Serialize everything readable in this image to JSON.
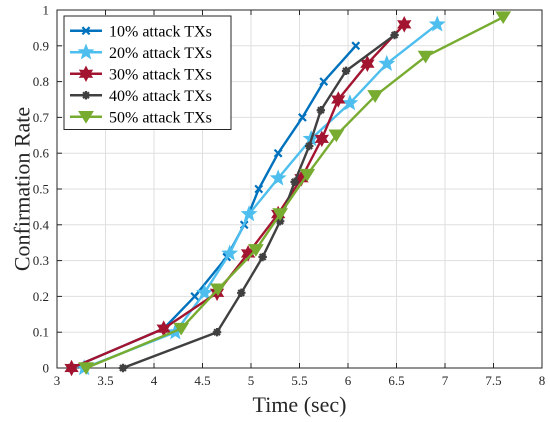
{
  "chart_data": {
    "type": "line",
    "xlabel": "Time (sec)",
    "ylabel": "Confirmation Rate",
    "xlim": [
      3,
      8
    ],
    "ylim": [
      0,
      1
    ],
    "xticks": [
      "3",
      "3.5",
      "4",
      "4.5",
      "5",
      "5.5",
      "6",
      "6.5",
      "7",
      "7.5",
      "8"
    ],
    "yticks": [
      "0",
      "0.1",
      "0.2",
      "0.3",
      "0.4",
      "0.5",
      "0.6",
      "0.7",
      "0.8",
      "0.9",
      "1"
    ],
    "grid": true,
    "legend_position": "top-left",
    "series": [
      {
        "name": "10% attack TXs",
        "color": "#0072bd",
        "marker": "x",
        "x": [
          3.15,
          4.1,
          4.42,
          4.75,
          4.93,
          5.08,
          5.28,
          5.53,
          5.75,
          6.08
        ],
        "y": [
          0.0,
          0.11,
          0.2,
          0.31,
          0.4,
          0.5,
          0.6,
          0.7,
          0.8,
          0.9
        ]
      },
      {
        "name": "20% attack TXs",
        "color": "#4dbeee",
        "marker": "star",
        "x": [
          3.28,
          4.22,
          4.52,
          4.78,
          4.98,
          5.28,
          5.62,
          6.02,
          6.4,
          6.92
        ],
        "y": [
          0.0,
          0.1,
          0.21,
          0.32,
          0.43,
          0.53,
          0.64,
          0.74,
          0.85,
          0.96
        ]
      },
      {
        "name": "30% attack TXs",
        "color": "#a2142f",
        "marker": "hexagram",
        "x": [
          3.15,
          4.1,
          4.65,
          4.97,
          5.28,
          5.52,
          5.73,
          5.9,
          6.2,
          6.58
        ],
        "y": [
          0.0,
          0.11,
          0.21,
          0.32,
          0.43,
          0.53,
          0.64,
          0.75,
          0.85,
          0.96
        ]
      },
      {
        "name": "40% attack TXs",
        "color": "#404040",
        "marker": "asterisk",
        "x": [
          3.68,
          4.65,
          4.9,
          5.12,
          5.3,
          5.45,
          5.6,
          5.72,
          5.98,
          6.48
        ],
        "y": [
          0.0,
          0.1,
          0.21,
          0.31,
          0.41,
          0.52,
          0.62,
          0.72,
          0.83,
          0.93
        ]
      },
      {
        "name": "50% attack TXs",
        "color": "#77ac30",
        "marker": "triangle-down",
        "x": [
          3.3,
          4.28,
          4.66,
          5.05,
          5.3,
          5.58,
          5.88,
          6.28,
          6.8,
          7.6
        ],
        "y": [
          0.0,
          0.11,
          0.22,
          0.33,
          0.43,
          0.54,
          0.65,
          0.76,
          0.87,
          0.98
        ]
      }
    ]
  }
}
